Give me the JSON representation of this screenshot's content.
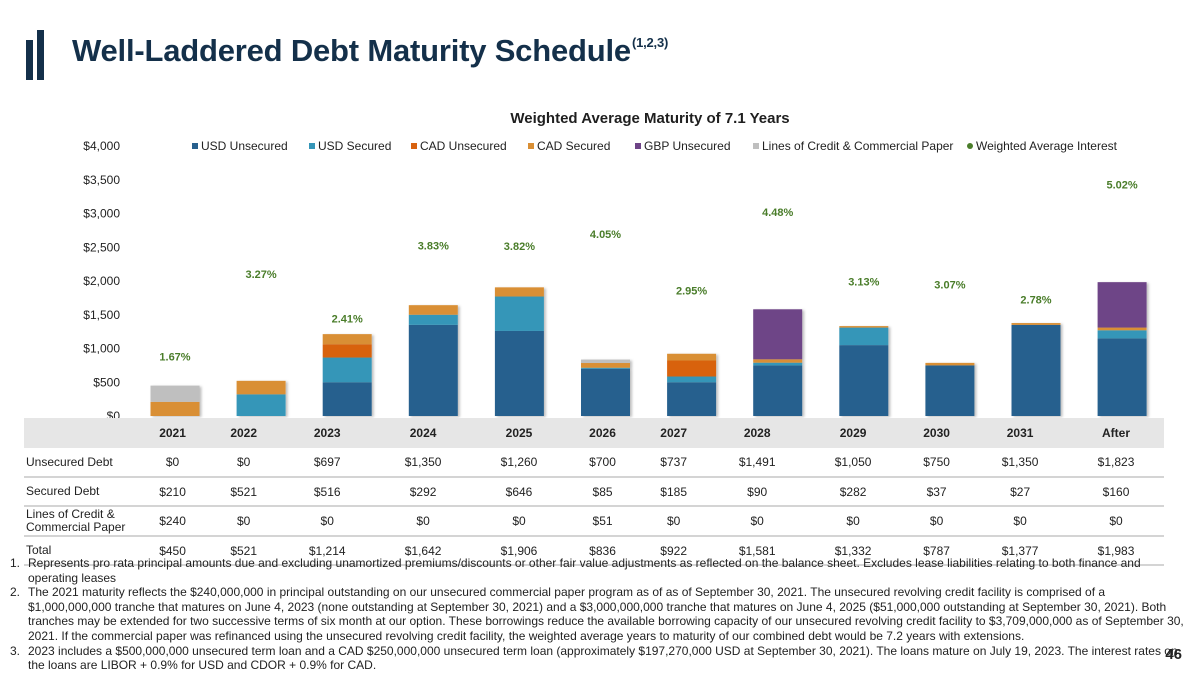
{
  "page": {
    "title": "Well-Laddered Debt Maturity Schedule",
    "title_superscript": "(1,2,3)",
    "page_number": "46"
  },
  "chart_data": {
    "type": "bar",
    "stacked": true,
    "title": "Weighted Average Maturity of 7.1 Years",
    "xlabel": "",
    "ylabel": "",
    "ylim": [
      0,
      4000
    ],
    "yticks": [
      "$0",
      "$500",
      "$1,000",
      "$1,500",
      "$2,000",
      "$2,500",
      "$3,000",
      "$3,500",
      "$4,000"
    ],
    "ytick_values": [
      0,
      500,
      1000,
      1500,
      2000,
      2500,
      3000,
      3500,
      4000
    ],
    "grid": false,
    "legend_position": "top",
    "categories": [
      "2021",
      "2022",
      "2023",
      "2024",
      "2025",
      "2026",
      "2027",
      "2028",
      "2029",
      "2030",
      "2031",
      "After"
    ],
    "series": [
      {
        "name": "USD Unsecured",
        "color": "#27608e",
        "values": [
          0,
          0,
          500,
          1350,
          1260,
          700,
          500,
          750,
          1050,
          750,
          1350,
          1150
        ]
      },
      {
        "name": "USD Secured",
        "color": "#3596b8",
        "values": [
          0,
          321,
          366,
          150,
          510,
          15,
          85,
          40,
          260,
          0,
          0,
          120
        ]
      },
      {
        "name": "CAD Unsecured",
        "color": "#d8620f",
        "values": [
          0,
          0,
          197,
          0,
          0,
          0,
          237,
          0,
          0,
          0,
          0,
          0
        ]
      },
      {
        "name": "CAD Secured",
        "color": "#d98f35",
        "values": [
          210,
          200,
          150,
          142,
          136,
          70,
          100,
          50,
          22,
          37,
          27,
          40
        ]
      },
      {
        "name": "GBP Unsecured",
        "color": "#6e4487",
        "values": [
          0,
          0,
          0,
          0,
          0,
          0,
          0,
          741,
          0,
          0,
          0,
          673
        ]
      },
      {
        "name": "Lines of Credit & Commercial Paper",
        "color": "#bfbfbf",
        "values": [
          240,
          0,
          0,
          0,
          0,
          51,
          0,
          0,
          0,
          0,
          0,
          0
        ]
      }
    ],
    "line_series": {
      "name": "Weighted Average Interest",
      "color": "#4a7d2a",
      "values": [
        1.67,
        3.27,
        2.41,
        3.83,
        3.82,
        4.05,
        2.95,
        4.48,
        3.13,
        3.07,
        2.78,
        5.02
      ],
      "labels": [
        "1.67%",
        "3.27%",
        "2.41%",
        "3.83%",
        "3.82%",
        "4.05%",
        "2.95%",
        "4.48%",
        "3.13%",
        "3.07%",
        "2.78%",
        "5.02%"
      ],
      "markers_visible": false
    }
  },
  "table": {
    "headers": [
      "",
      "2021",
      "2022",
      "2023",
      "2024",
      "2025",
      "2026",
      "2027",
      "2028",
      "2029",
      "2030",
      "2031",
      "After"
    ],
    "rows": [
      {
        "label": "Unsecured Debt",
        "values": [
          "$0",
          "$0",
          "$697",
          "$1,350",
          "$1,260",
          "$700",
          "$737",
          "$1,491",
          "$1,050",
          "$750",
          "$1,350",
          "$1,823"
        ]
      },
      {
        "label": "Secured Debt",
        "values": [
          "$210",
          "$521",
          "$516",
          "$292",
          "$646",
          "$85",
          "$185",
          "$90",
          "$282",
          "$37",
          "$27",
          "$160"
        ]
      },
      {
        "label_line1": "Lines of Credit &",
        "label_line2": "Commercial Paper",
        "values": [
          "$240",
          "$0",
          "$0",
          "$0",
          "$0",
          "$51",
          "$0",
          "$0",
          "$0",
          "$0",
          "$0",
          "$0"
        ]
      },
      {
        "label": "Total",
        "values": [
          "$450",
          "$521",
          "$1,214",
          "$1,642",
          "$1,906",
          "$836",
          "$922",
          "$1,581",
          "$1,332",
          "$787",
          "$1,377",
          "$1,983"
        ]
      }
    ]
  },
  "footnotes": [
    {
      "num": "1.",
      "text": "Represents pro rata principal amounts due and excluding unamortized premiums/discounts or other fair value adjustments as reflected on the balance sheet. Excludes lease liabilities relating to both finance and operating leases"
    },
    {
      "num": "2.",
      "text": "The 2021 maturity reflects the $240,000,000 in principal outstanding on our unsecured commercial paper program as of as of September 30, 2021. The unsecured revolving credit facility is comprised of a $1,000,000,000 tranche that matures on June 4, 2023 (none outstanding at September 30, 2021) and a $3,000,000,000 tranche that matures on June 4, 2025 ($51,000,000 outstanding at September 30, 2021). Both tranches may be extended for two successive terms of six month at our option. These borrowings reduce the available borrowing capacity of our unsecured revolving credit facility to $3,709,000,000 as of September 30, 2021. If the commercial paper was refinanced using the unsecured revolving credit facility, the weighted average years to maturity of our combined debt would be 7.2 years with extensions."
    },
    {
      "num": "3.",
      "text": "2023 includes a $500,000,000 unsecured term loan and a CAD $250,000,000 unsecured term loan (approximately $197,270,000 USD at September 30, 2021). The loans mature on July 19, 2023. The interest rates on the loans are LIBOR + 0.9% for USD and CDOR + 0.9% for CAD."
    }
  ]
}
